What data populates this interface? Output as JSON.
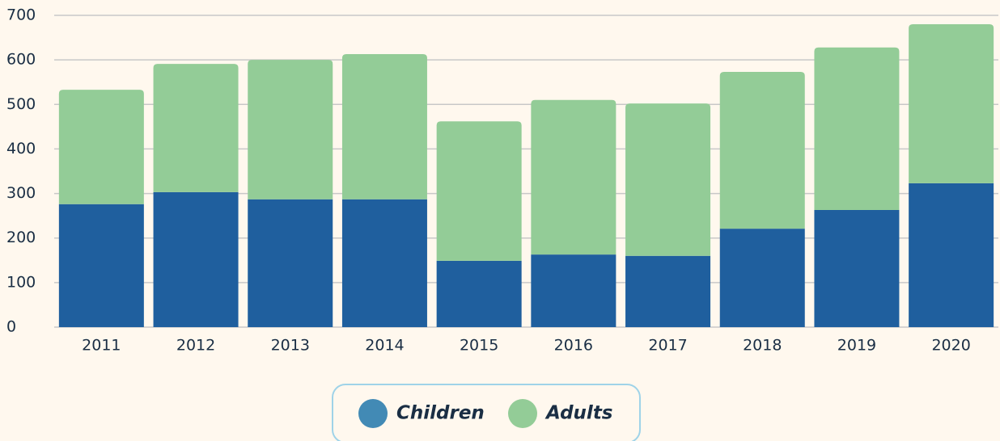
{
  "chart_data": {
    "type": "stacked_bar",
    "categories": [
      "2011",
      "2012",
      "2013",
      "2014",
      "2015",
      "2016",
      "2017",
      "2018",
      "2019",
      "2020"
    ],
    "series": [
      {
        "name": "Children",
        "color": "#1f5f9e",
        "values": [
          276,
          303,
          287,
          287,
          149,
          163,
          160,
          221,
          263,
          323
        ]
      },
      {
        "name": "Adults",
        "color": "#93cc97",
        "values": [
          257,
          288,
          313,
          326,
          313,
          347,
          342,
          352,
          365,
          357
        ]
      }
    ],
    "ylim": [
      0,
      700
    ],
    "yticks": [
      0,
      100,
      200,
      300,
      400,
      500,
      600,
      700
    ],
    "grid": true,
    "legend": "bottom"
  }
}
